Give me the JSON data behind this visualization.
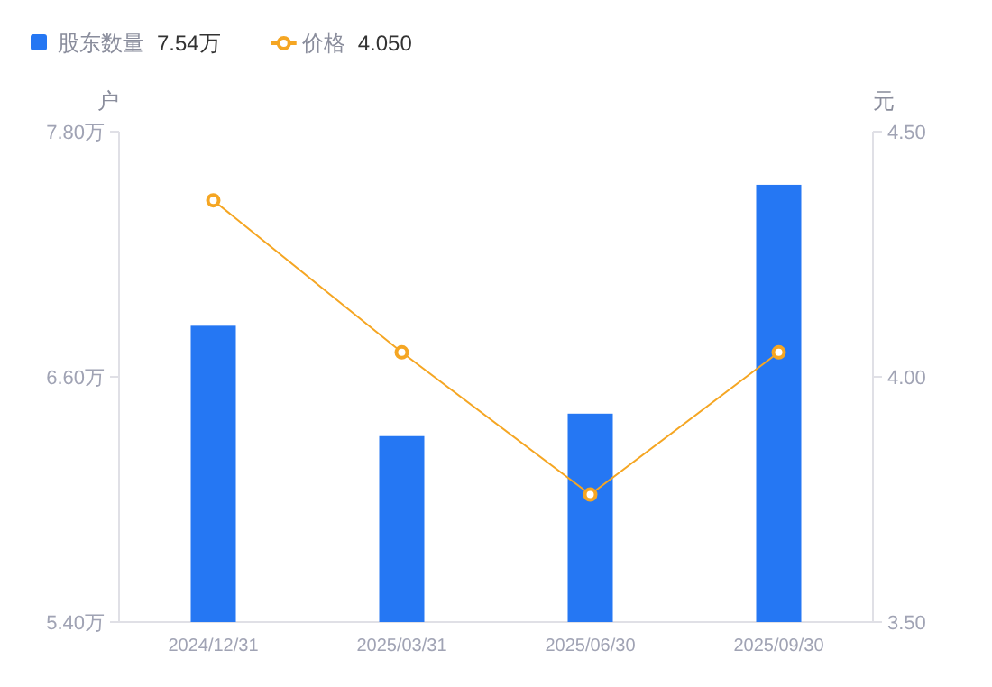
{
  "chart_data": {
    "type": "bar",
    "categories": [
      "2024/12/31",
      "2025/03/31",
      "2025/06/30",
      "2025/09/30"
    ],
    "series": [
      {
        "name": "股东数量",
        "color": "#2577f3",
        "values": [
          6.85,
          6.31,
          6.42,
          7.54
        ]
      },
      {
        "name": "价格",
        "type": "line",
        "axis": "y2",
        "color": "#f5a623",
        "marker": "circle",
        "values": [
          4.36,
          4.05,
          3.76,
          4.05
        ]
      }
    ],
    "ylabel": "户",
    "y2label": "元",
    "ylim": [
      5.4,
      7.8
    ],
    "yticks": [
      {
        "value": 5.4,
        "label": "5.40万"
      },
      {
        "value": 6.6,
        "label": "6.60万"
      },
      {
        "value": 7.8,
        "label": "7.80万"
      }
    ],
    "y2lim": [
      3.5,
      4.5
    ],
    "y2ticks": [
      {
        "value": 3.5,
        "label": "3.50"
      },
      {
        "value": 4.0,
        "label": "4.00"
      },
      {
        "value": 4.5,
        "label": "4.50"
      }
    ],
    "annotations": [
      "7.54万",
      "4.050"
    ],
    "legend": "top left",
    "grid": false
  }
}
